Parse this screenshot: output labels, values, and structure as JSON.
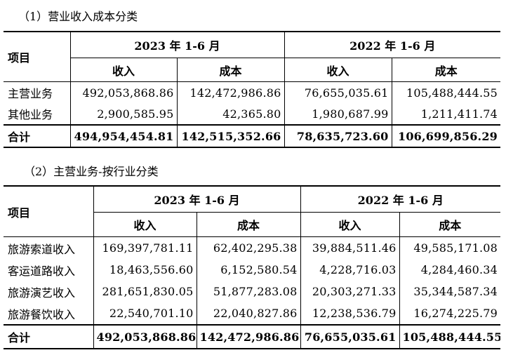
{
  "section1": {
    "title": "（1）营业收入成本分类",
    "col_item": "项目",
    "period_2023": "2023 年 1-6 月",
    "period_2022": "2022 年 1-6 月",
    "col_revenue": "收入",
    "col_cost": "成本",
    "rows": [
      {
        "label": "主营业务",
        "rev_2023": "492,053,868.86",
        "cost_2023": "142,472,986.86",
        "rev_2022": "76,655,035.61",
        "cost_2022": "105,488,444.55"
      },
      {
        "label": "其他业务",
        "rev_2023": "2,900,585.95",
        "cost_2023": "42,365.80",
        "rev_2022": "1,980,687.99",
        "cost_2022": "1,211,411.74"
      }
    ],
    "total": {
      "label": "合计",
      "rev_2023": "494,954,454.81",
      "cost_2023": "142,515,352.66",
      "rev_2022": "78,635,723.60",
      "cost_2022": "106,699,856.29"
    }
  },
  "section2": {
    "title": "（2）主营业务-按行业分类",
    "col_item": "项目",
    "period_2023": "2023 年 1-6 月",
    "period_2022": "2022 年 1-6 月",
    "col_revenue": "收入",
    "col_cost": "成本",
    "rows": [
      {
        "label": "旅游索道收入",
        "rev_2023": "169,397,781.11",
        "cost_2023": "62,402,295.38",
        "rev_2022": "39,884,511.46",
        "cost_2022": "49,585,171.08"
      },
      {
        "label": "客运道路收入",
        "rev_2023": "18,463,556.60",
        "cost_2023": "6,152,580.54",
        "rev_2022": "4,228,716.03",
        "cost_2022": "4,284,460.34"
      },
      {
        "label": "旅游演艺收入",
        "rev_2023": "281,651,830.05",
        "cost_2023": "51,877,283.08",
        "rev_2022": "20,303,271.33",
        "cost_2022": "35,344,587.34"
      },
      {
        "label": "旅游餐饮收入",
        "rev_2023": "22,540,701.10",
        "cost_2023": "22,040,827.86",
        "rev_2022": "12,238,536.79",
        "cost_2022": "16,274,225.79"
      }
    ],
    "total": {
      "label": "合计",
      "rev_2023": "492,053,868.86",
      "cost_2023": "142,472,986.86",
      "rev_2022": "76,655,035.61",
      "cost_2022": "105,488,444.55"
    }
  }
}
